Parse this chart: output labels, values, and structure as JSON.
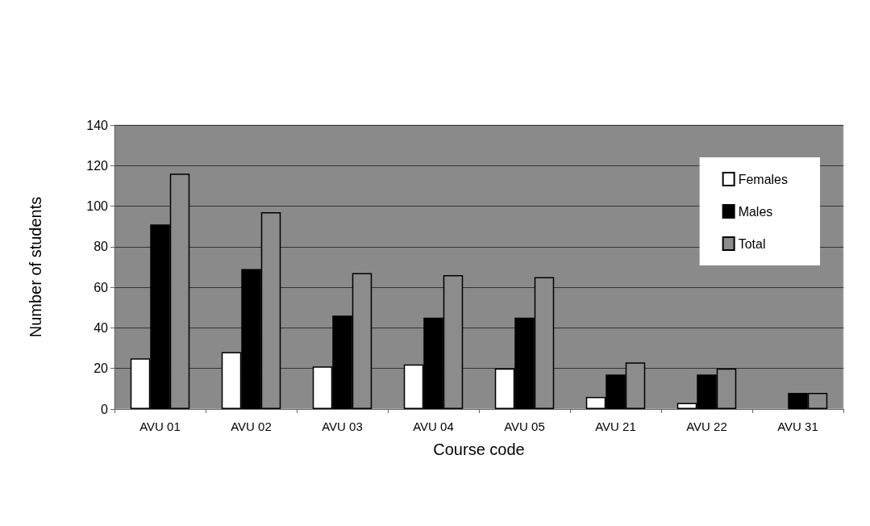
{
  "chart_data": {
    "type": "bar",
    "xlabel": "Course code",
    "ylabel": "Number of students",
    "categories": [
      "AVU 01",
      "AVU 02",
      "AVU 03",
      "AVU 04",
      "AVU 05",
      "AVU 21",
      "AVU 22",
      "AVU 31"
    ],
    "series": [
      {
        "name": "Females",
        "color": "#ffffff",
        "values": [
          25,
          28,
          21,
          22,
          20,
          6,
          3,
          0
        ]
      },
      {
        "name": "Males",
        "color": "#000000",
        "values": [
          91,
          69,
          46,
          45,
          45,
          17,
          17,
          8
        ]
      },
      {
        "name": "Total",
        "color": "#8c8c8c",
        "values": [
          116,
          97,
          67,
          66,
          65,
          23,
          20,
          8
        ]
      }
    ],
    "ylim": [
      0,
      140
    ],
    "yticks": [
      0,
      20,
      40,
      60,
      80,
      100,
      120,
      140
    ],
    "grid": "y",
    "legend": "top right"
  }
}
